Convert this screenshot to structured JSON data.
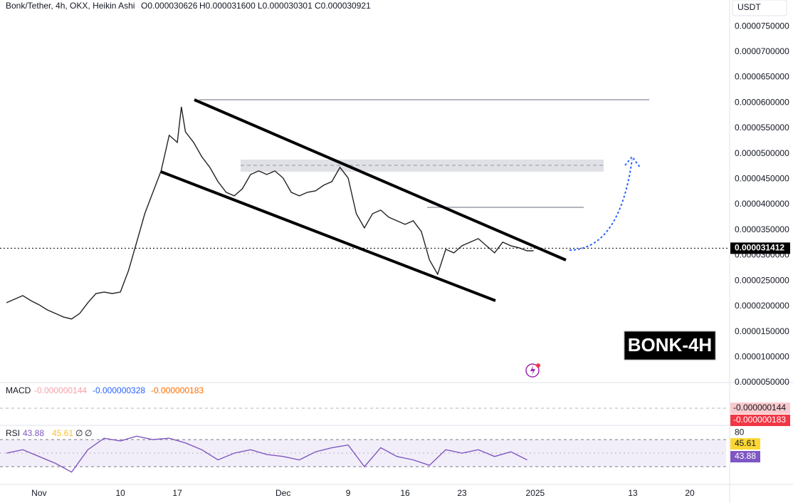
{
  "header": {
    "title": "Bonk/Tether, 4h, OKX, Heikin Ashi",
    "ohlc": [
      "O0.000030626",
      "H0.000031600",
      "L0.000030301",
      "C0.000030921"
    ]
  },
  "currency": "USDT",
  "watermark": "BONK-4H",
  "chart_data": [
    {
      "type": "line",
      "color": "#222222",
      "x": [
        -4,
        -3,
        -2,
        -1,
        0,
        1,
        2,
        3,
        4,
        5,
        6,
        7,
        8,
        9,
        10,
        11,
        12,
        13,
        14,
        15,
        16,
        17,
        17.5,
        18,
        19,
        20,
        21,
        22,
        23,
        24,
        25,
        26,
        27,
        28,
        29,
        30,
        31,
        32,
        33,
        34,
        35,
        36,
        37,
        38,
        39,
        40,
        41,
        42,
        43,
        44,
        45,
        46,
        47,
        48,
        49,
        50,
        51,
        52,
        53,
        54,
        55,
        56,
        57,
        58,
        59,
        60,
        60.8
      ],
      "values": [
        2.07e-05,
        2.14e-05,
        2.21e-05,
        2.11e-05,
        2.03e-05,
        1.93e-05,
        1.86e-05,
        1.79e-05,
        1.75e-05,
        1.86e-05,
        2.07e-05,
        2.25e-05,
        2.28e-05,
        2.25e-05,
        2.28e-05,
        2.7e-05,
        3.26e-05,
        3.82e-05,
        4.24e-05,
        4.66e-05,
        5.36e-05,
        5.22e-05,
        5.92e-05,
        5.43e-05,
        5.22e-05,
        4.94e-05,
        4.73e-05,
        4.45e-05,
        4.24e-05,
        4.17e-05,
        4.31e-05,
        4.59e-05,
        4.66e-05,
        4.59e-05,
        4.66e-05,
        4.52e-05,
        4.24e-05,
        4.17e-05,
        4.24e-05,
        4.27e-05,
        4.38e-05,
        4.45e-05,
        4.73e-05,
        4.52e-05,
        3.82e-05,
        3.54e-05,
        3.82e-05,
        3.89e-05,
        3.75e-05,
        3.68e-05,
        3.61e-05,
        3.68e-05,
        3.47e-05,
        2.91e-05,
        2.63e-05,
        3.12e-05,
        3.05e-05,
        3.19e-05,
        3.26e-05,
        3.33e-05,
        3.19e-05,
        3.05e-05,
        3.26e-05,
        3.19e-05,
        3.15e-05,
        3.09e-05,
        3.09e-05
      ],
      "xlim": [
        -4.8,
        84.9
      ],
      "xticks": [
        {
          "value": 0,
          "label": "Nov"
        },
        10,
        17,
        {
          "value": 30,
          "label": "Dec"
        },
        {
          "value": 38,
          "label": "9"
        },
        {
          "value": 45,
          "label": "16"
        },
        {
          "value": 52,
          "label": "23"
        },
        {
          "value": 61,
          "label": "2025"
        },
        {
          "value": 73,
          "label": "13"
        },
        {
          "value": 80,
          "label": "20"
        }
      ],
      "ylim": [
        5e-06,
        8.02e-05
      ],
      "yticks": [
        {
          "value": 5e-06,
          "label": "0.0000050000"
        },
        {
          "value": 1e-05,
          "label": "0.0000100000"
        },
        {
          "value": 1.5e-05,
          "label": "0.0000150000"
        },
        {
          "value": 2e-05,
          "label": "0.0000200000"
        },
        {
          "value": 2.5e-05,
          "label": "0.0000250000"
        },
        {
          "value": 3e-05,
          "label": "0.0000300000"
        },
        {
          "value": 3.5e-05,
          "label": "0.0000350000"
        },
        {
          "value": 4e-05,
          "label": "0.0000400000"
        },
        {
          "value": 4.5e-05,
          "label": "0.0000450000"
        },
        {
          "value": 5e-05,
          "label": "0.0000500000"
        },
        {
          "value": 5.5e-05,
          "label": "0.0000550000"
        },
        {
          "value": 6e-05,
          "label": "0.0000600000"
        },
        {
          "value": 6.5e-05,
          "label": "0.0000650000"
        },
        {
          "value": 7e-05,
          "label": "0.0000700000"
        },
        {
          "value": 7.5e-05,
          "label": "0.0000750000"
        }
      ],
      "last_price": 3.1412e-05
    },
    {
      "type": "macd",
      "title": "MACD",
      "legend": [
        "-0.000000144",
        "-0.000000328",
        "-0.000000183"
      ],
      "axis_labels": [
        "-0.000000144",
        "-0.000000183"
      ]
    },
    {
      "type": "line",
      "title": "RSI",
      "legend": [
        43.88,
        45.61,
        "∅",
        "∅"
      ],
      "x": [
        -4,
        -2,
        0,
        2,
        4,
        6,
        8,
        10,
        12,
        14,
        16,
        18,
        20,
        22,
        24,
        26,
        28,
        30,
        32,
        34,
        36,
        38,
        40,
        42,
        44,
        46,
        48,
        50,
        52,
        54,
        56,
        58,
        60
      ],
      "values": [
        50,
        55,
        45,
        35,
        22,
        55,
        72,
        68,
        75,
        70,
        72,
        65,
        55,
        40,
        50,
        55,
        48,
        45,
        40,
        52,
        58,
        62,
        30,
        58,
        45,
        40,
        32,
        55,
        50,
        55,
        45,
        52,
        40
      ],
      "color": "#7e57c2",
      "ylim": [
        3.7,
        91
      ],
      "yticks": [
        80
      ]
    }
  ]
}
